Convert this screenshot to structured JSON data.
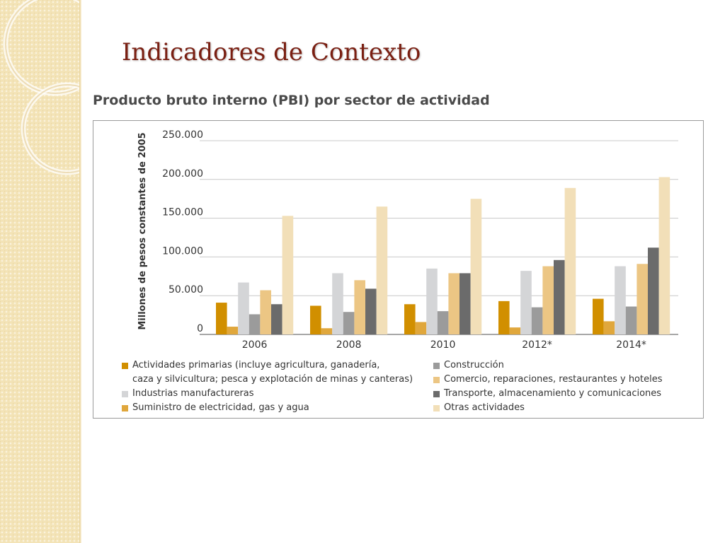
{
  "slide": {
    "title": "Indicadores de Contexto"
  },
  "chart_title": "Producto bruto interno (PBI) por sector de actividad",
  "chart_data": {
    "type": "bar",
    "title": "Producto bruto interno (PBI) por sector de actividad",
    "xlabel": "",
    "ylabel": "Millones de pesos constantes de 2005",
    "categories": [
      "2006",
      "2008",
      "2010",
      "2012*",
      "2014*"
    ],
    "ylim": [
      0,
      250000
    ],
    "yticks": [
      {
        "value": 0,
        "label": "0"
      },
      {
        "value": 50000,
        "label": "50.000"
      },
      {
        "value": 100000,
        "label": "100.000"
      },
      {
        "value": 150000,
        "label": "150.000"
      },
      {
        "value": 200000,
        "label": "200.000"
      },
      {
        "value": 250000,
        "label": "250.000"
      }
    ],
    "grid": true,
    "legend_position": "bottom",
    "series": [
      {
        "name": "Actividades primarias (incluye agricultura, ganadería, caza y silvicultura; pesca y explotación de minas y canteras)",
        "color": "#d18f00",
        "values": [
          41000,
          37000,
          39000,
          43000,
          46000
        ]
      },
      {
        "name": "Suministro de electricidad, gas y agua",
        "color": "#e0a73c",
        "values": [
          10000,
          8000,
          16000,
          9000,
          17000
        ]
      },
      {
        "name": "Construcción",
        "color": "#9b9b9b",
        "values": [
          26000,
          29000,
          30000,
          35000,
          36000
        ]
      },
      {
        "name": "Comercio, reparaciones, restaurantes y hoteles",
        "color": "#ecc684",
        "values": [
          57000,
          70000,
          79000,
          88000,
          91000
        ]
      },
      {
        "name": "Transporte, almacenamiento y comunicaciones",
        "color": "#6b6b6b",
        "values": [
          39000,
          59000,
          79000,
          96000,
          112000
        ]
      },
      {
        "name": "Industrias manufactureras",
        "color": "#d4d5d7",
        "values": [
          67000,
          79000,
          85000,
          82000,
          88000
        ]
      },
      {
        "name": "Otras actividades",
        "color": "#f2dfb8",
        "values": [
          153000,
          165000,
          175000,
          189000,
          203000
        ]
      }
    ],
    "legend_text": {
      "actividades_line1": "Actividades primarias (incluye agricultura, ganadería,",
      "actividades_line2": "caza y silvicultura; pesca y explotación de minas y canteras)",
      "industrias": "Industrias manufactureras",
      "suministro": "Suministro de electricidad, gas y agua",
      "construccion": "Construcción",
      "comercio": "Comercio, reparaciones, restaurantes y hoteles",
      "transporte": "Transporte, almacenamiento y comunicaciones",
      "otras": "Otras actividades"
    }
  }
}
